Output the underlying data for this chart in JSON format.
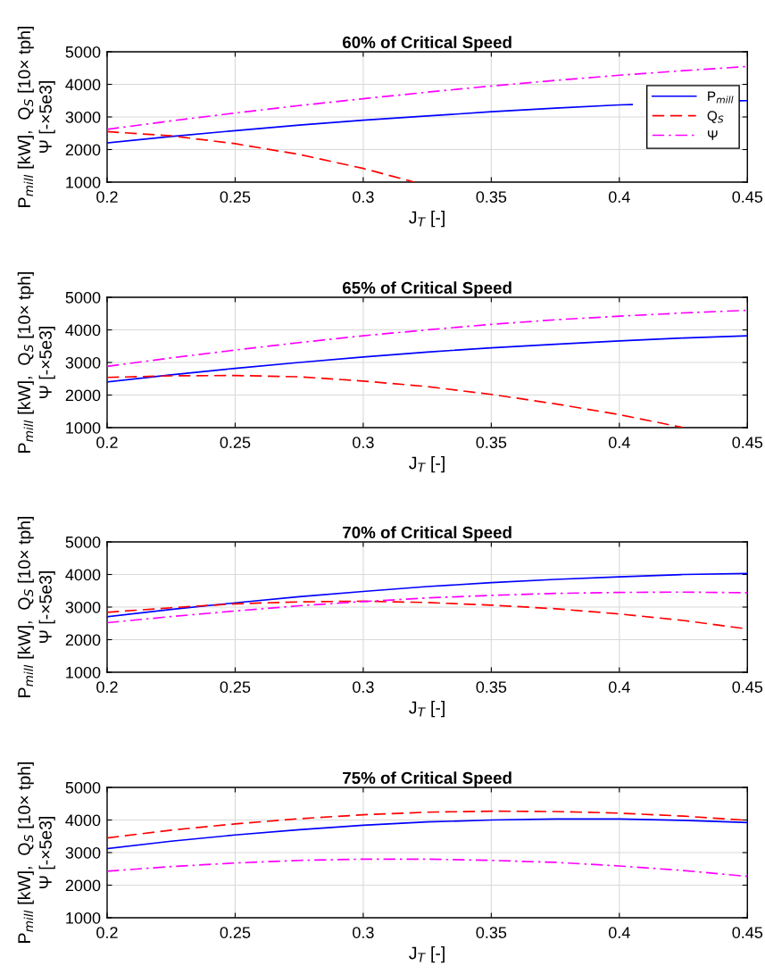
{
  "chart_data": [
    {
      "type": "line",
      "title": "60% of Critical Speed",
      "xlabel": "J$_{T}$ [-]",
      "ylabel": "P$_{mill}$ [kW],  Q$_{S}$ [10× tph]\nΨ [-×5e3]",
      "x": [
        0.2,
        0.225,
        0.25,
        0.275,
        0.3,
        0.325,
        0.35,
        0.375,
        0.4,
        0.425,
        0.45
      ],
      "series": [
        {
          "name": "P$_{mill}$",
          "color": "#0000ff",
          "line_style": "solid",
          "values": [
            2200,
            2400,
            2580,
            2750,
            2900,
            3030,
            3160,
            3270,
            3370,
            3380,
            null,
            3495,
            3500
          ],
          "x": [
            0.2,
            0.225,
            0.25,
            0.275,
            0.3,
            0.325,
            0.35,
            0.375,
            0.4,
            0.405,
            0.425,
            0.447,
            0.45
          ]
        },
        {
          "name": "Q$_{S}$",
          "color": "#ff0000",
          "line_style": "dashed",
          "x": [
            0.2,
            0.225,
            0.25,
            0.275,
            0.3,
            0.32
          ],
          "values": [
            2550,
            2420,
            2180,
            1850,
            1420,
            1000
          ]
        },
        {
          "name": "Ψ",
          "color": "#ff00ff",
          "line_style": "dashdot",
          "values": [
            2620,
            2880,
            3120,
            3350,
            3560,
            3760,
            3950,
            4120,
            4280,
            4420,
            4550
          ]
        }
      ],
      "xlim": [
        0.2,
        0.45
      ],
      "xticks": [
        0.2,
        0.25,
        0.3,
        0.35,
        0.4,
        0.45
      ],
      "ylim": [
        1000,
        5000
      ],
      "yticks": [
        1000,
        2000,
        3000,
        4000,
        5000
      ],
      "grid": true,
      "legend": "right"
    },
    {
      "type": "line",
      "title": "65% of Critical Speed",
      "xlabel": "J$_{T}$ [-]",
      "ylabel": "P$_{mill}$ [kW],  Q$_{S}$ [10× tph]\nΨ [-×5e3]",
      "x": [
        0.2,
        0.225,
        0.25,
        0.275,
        0.3,
        0.325,
        0.35,
        0.375,
        0.4,
        0.425,
        0.45
      ],
      "series": [
        {
          "color": "#0000ff",
          "line_style": "solid",
          "values": [
            2400,
            2620,
            2820,
            3000,
            3170,
            3320,
            3450,
            3560,
            3660,
            3750,
            3820
          ]
        },
        {
          "color": "#ff0000",
          "line_style": "dashed",
          "x": [
            0.2,
            0.225,
            0.25,
            0.275,
            0.3,
            0.325,
            0.35,
            0.375,
            0.4,
            0.425
          ],
          "values": [
            2540,
            2590,
            2600,
            2560,
            2430,
            2260,
            2020,
            1730,
            1400,
            1000
          ]
        },
        {
          "color": "#ff00ff",
          "line_style": "dashdot",
          "values": [
            2880,
            3140,
            3380,
            3610,
            3820,
            4000,
            4170,
            4310,
            4420,
            4520,
            4600
          ]
        }
      ],
      "xlim": [
        0.2,
        0.45
      ],
      "xticks": [
        0.2,
        0.25,
        0.3,
        0.35,
        0.4,
        0.45
      ],
      "ylim": [
        1000,
        5000
      ],
      "yticks": [
        1000,
        2000,
        3000,
        4000,
        5000
      ],
      "grid": true
    },
    {
      "type": "line",
      "title": "70% of Critical Speed",
      "xlabel": "J$_{T}$ [-]",
      "ylabel": "P$_{mill}$ [kW],  Q$_{S}$ [10× tph]\nΨ [-×5e3]",
      "x": [
        0.2,
        0.225,
        0.25,
        0.275,
        0.3,
        0.325,
        0.35,
        0.375,
        0.4,
        0.425,
        0.45
      ],
      "series": [
        {
          "color": "#0000ff",
          "line_style": "solid",
          "values": [
            2700,
            2930,
            3130,
            3320,
            3480,
            3630,
            3750,
            3850,
            3930,
            4000,
            4030
          ]
        },
        {
          "color": "#ff0000",
          "line_style": "dashed",
          "values": [
            2840,
            2980,
            3100,
            3160,
            3180,
            3140,
            3060,
            2950,
            2790,
            2590,
            2330
          ]
        },
        {
          "color": "#ff00ff",
          "line_style": "dashdot",
          "values": [
            2520,
            2710,
            2880,
            3040,
            3170,
            3280,
            3360,
            3420,
            3450,
            3460,
            3440
          ]
        }
      ],
      "xlim": [
        0.2,
        0.45
      ],
      "xticks": [
        0.2,
        0.25,
        0.3,
        0.35,
        0.4,
        0.45
      ],
      "ylim": [
        1000,
        5000
      ],
      "yticks": [
        1000,
        2000,
        3000,
        4000,
        5000
      ],
      "grid": true
    },
    {
      "type": "line",
      "title": "75% of Critical Speed",
      "xlabel": "J$_{T}$ [-]",
      "ylabel": "P$_{mill}$ [kW],  Q$_{S}$ [10× tph]\nΨ [-×5e3]",
      "x": [
        0.2,
        0.225,
        0.25,
        0.275,
        0.3,
        0.325,
        0.35,
        0.375,
        0.4,
        0.425,
        0.45
      ],
      "series": [
        {
          "color": "#0000ff",
          "line_style": "solid",
          "values": [
            3120,
            3350,
            3540,
            3700,
            3840,
            3940,
            4000,
            4030,
            4030,
            3990,
            3920
          ]
        },
        {
          "color": "#ff0000",
          "line_style": "dashed",
          "values": [
            3450,
            3690,
            3880,
            4040,
            4160,
            4240,
            4270,
            4260,
            4210,
            4120,
            3990
          ]
        },
        {
          "color": "#ff00ff",
          "line_style": "dashdot",
          "values": [
            2430,
            2570,
            2680,
            2760,
            2800,
            2800,
            2760,
            2700,
            2590,
            2450,
            2270
          ]
        }
      ],
      "xlim": [
        0.2,
        0.45
      ],
      "xticks": [
        0.2,
        0.25,
        0.3,
        0.35,
        0.4,
        0.45
      ],
      "ylim": [
        1000,
        5000
      ],
      "yticks": [
        1000,
        2000,
        3000,
        4000,
        5000
      ],
      "grid": true
    }
  ]
}
